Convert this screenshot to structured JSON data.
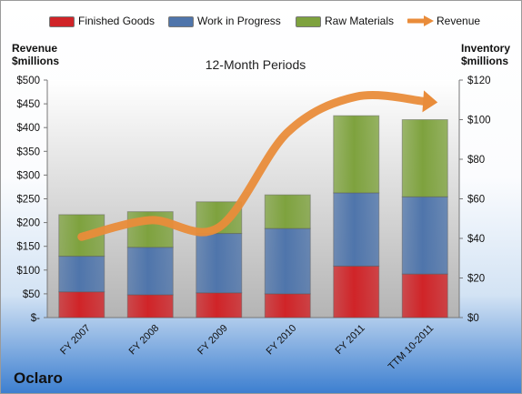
{
  "company": "Oclaro",
  "chart_data": {
    "type": "bar",
    "stacked": true,
    "title": "12-Month Periods",
    "categories": [
      "FY 2007",
      "FY 2008",
      "FY 2009",
      "FY 2010",
      "FY 2011",
      "TTM 10-2011"
    ],
    "left_axis": {
      "title_line1": "Revenue",
      "title_line2": "$millions",
      "ylim": [
        0,
        500
      ],
      "ticks": [
        "$-",
        "$50",
        "$100",
        "$150",
        "$200",
        "$250",
        "$300",
        "$350",
        "$400",
        "$450",
        "$500"
      ]
    },
    "right_axis": {
      "title_line1": "Inventory",
      "title_line2": "$millions",
      "ylim": [
        0,
        120
      ],
      "ticks": [
        "$0",
        "$20",
        "$40",
        "$60",
        "$80",
        "$100",
        "$120"
      ]
    },
    "series": [
      {
        "name": "Finished Goods",
        "axis": "right",
        "color": "#d02428",
        "values": [
          13,
          11.5,
          12.5,
          12,
          26,
          22
        ]
      },
      {
        "name": "Work in Progress",
        "axis": "right",
        "color": "#4f75ab",
        "values": [
          18,
          24,
          30,
          33,
          37,
          39
        ]
      },
      {
        "name": "Raw Materials",
        "axis": "right",
        "color": "#7ea23e",
        "values": [
          21,
          18,
          16,
          17,
          39,
          39
        ]
      },
      {
        "name": "Revenue",
        "axis": "left",
        "type": "line",
        "color": "#e98c3a",
        "values": [
          170,
          205,
          190,
          390,
          465,
          455
        ]
      }
    ],
    "grid": false,
    "legend_position": "top"
  }
}
